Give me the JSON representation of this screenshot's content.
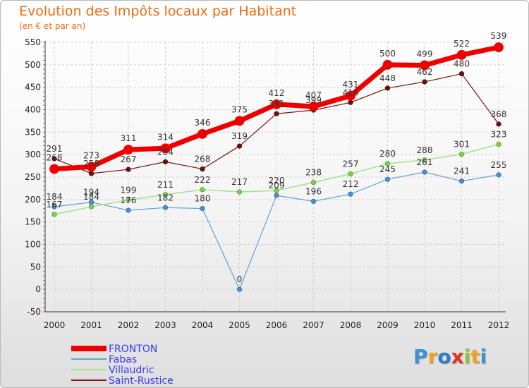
{
  "colors": {
    "FRONTON": "#ee0000",
    "Fabas": "#6a9fd0",
    "Villaudric": "#a6e08a",
    "Saint-Rustice": "#7a1515",
    "fabas_marker": "#4f8fd0",
    "villaudric_marker": "#7dd44a",
    "saint_marker": "#6e1010",
    "grid": "#d0d0d0",
    "title": "#f06a10"
  },
  "brand": {
    "letters": [
      "P",
      "r",
      "o",
      "x",
      "i",
      "t",
      "i"
    ],
    "colors": [
      "#3c8fd8",
      "#f0a020",
      "#2c7ac8",
      "#e43020",
      "#8cc63c",
      "#f0a020",
      "#3c8fd8"
    ]
  },
  "chart_data": {
    "type": "line",
    "title": "Evolution des Impôts locaux par Habitant",
    "subtitle": "(en € et par an)",
    "x": [
      "2000",
      "2001",
      "2002",
      "2003",
      "2004",
      "2005",
      "2006",
      "2007",
      "2008",
      "2009",
      "2010",
      "2011",
      "2012"
    ],
    "ylim": [
      -50,
      550
    ],
    "yticks": [
      -50,
      0,
      50,
      100,
      150,
      200,
      250,
      300,
      350,
      400,
      450,
      500,
      550
    ],
    "grid": true,
    "legend_position": "bottom-left",
    "series": [
      {
        "name": "FRONTON",
        "values": [
          268,
          273,
          311,
          314,
          346,
          375,
          412,
          407,
          431,
          500,
          499,
          522,
          539
        ]
      },
      {
        "name": "Fabas",
        "values": [
          184,
          194,
          176,
          182,
          180,
          0,
          209,
          196,
          212,
          245,
          261,
          241,
          255
        ]
      },
      {
        "name": "Villaudric",
        "values": [
          167,
          184,
          199,
          211,
          222,
          217,
          220,
          238,
          257,
          280,
          288,
          301,
          323
        ]
      },
      {
        "name": "Saint-Rustice",
        "values": [
          291,
          258,
          267,
          284,
          268,
          319,
          391,
          399,
          416,
          448,
          462,
          480,
          368
        ]
      }
    ]
  }
}
